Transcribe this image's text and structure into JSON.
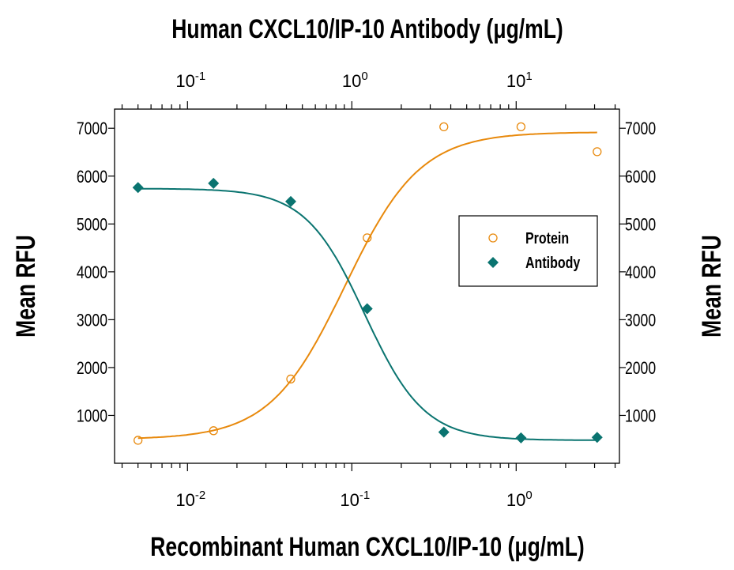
{
  "chart_data": {
    "type": "scatter",
    "top_xlabel": "Human CXCL10/IP-10 Antibody (μg/mL)",
    "xlabel": "Recombinant Human CXCL10/IP-10 (μg/mL)",
    "ylabel": "Mean RFU",
    "ylabel_right": "Mean RFU",
    "x_scale": "log",
    "xlim": [
      0.0036,
      4.25
    ],
    "top_xlim": [
      0.036,
      42.5
    ],
    "ylim": [
      0,
      7400
    ],
    "y_ticks": [
      1000,
      2000,
      3000,
      4000,
      5000,
      6000,
      7000
    ],
    "x_ticks": [
      {
        "base": "10",
        "exp": "-2",
        "value": 0.01
      },
      {
        "base": "10",
        "exp": "-1",
        "value": 0.1
      },
      {
        "base": "10",
        "exp": "0",
        "value": 1
      }
    ],
    "top_x_ticks": [
      {
        "base": "10",
        "exp": "-1",
        "value": 0.1
      },
      {
        "base": "10",
        "exp": "0",
        "value": 1
      },
      {
        "base": "10",
        "exp": "1",
        "value": 10
      }
    ],
    "grid": false,
    "legend_placement": "right",
    "series": [
      {
        "name": "Protein",
        "marker": "open-circle",
        "color": "#E8890C",
        "x": [
          0.005,
          0.0144,
          0.0425,
          0.124,
          0.363,
          1.07,
          3.11
        ],
        "y": [
          480,
          680,
          1760,
          4710,
          7030,
          7030,
          6510
        ],
        "fit": {
          "bottom": 500,
          "top": 6920,
          "ec50": 0.091,
          "hill": 1.9
        }
      },
      {
        "name": "Antibody",
        "marker": "filled-diamond",
        "color": "#0A7470",
        "x": [
          0.005,
          0.0144,
          0.0425,
          0.124,
          0.363,
          1.07,
          3.11
        ],
        "y": [
          5760,
          5850,
          5470,
          3230,
          650,
          530,
          540
        ],
        "fit": {
          "bottom": 480,
          "top": 5740,
          "ec50": 0.12,
          "hill": -2.4
        }
      }
    ]
  }
}
